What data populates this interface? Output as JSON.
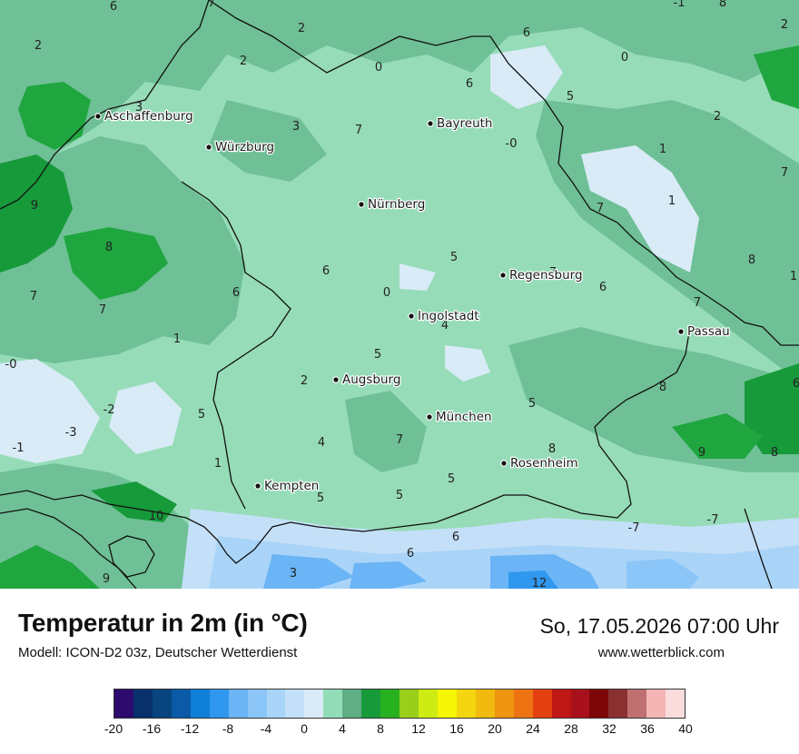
{
  "map": {
    "cities": [
      {
        "name": "Aschaffenburg"
      },
      {
        "name": "Würzburg"
      },
      {
        "name": "Bayreuth"
      },
      {
        "name": "Nürnberg"
      },
      {
        "name": "Regensburg"
      },
      {
        "name": "Ingolstadt"
      },
      {
        "name": "Passau"
      },
      {
        "name": "Augsburg"
      },
      {
        "name": "München"
      },
      {
        "name": "Rosenheim"
      },
      {
        "name": "Kempten"
      }
    ],
    "values": [
      "6",
      "7",
      "2",
      "2",
      "6",
      "-1",
      "8",
      "2",
      "0",
      "6",
      "0",
      "2",
      "3",
      "3",
      "7",
      "5",
      "-0",
      "2",
      "1",
      "7",
      "8",
      "7",
      "6",
      "9",
      "5",
      "7",
      "1",
      "8",
      "7",
      "1",
      "7",
      "6",
      "5",
      "6",
      "0",
      "4",
      "1",
      "-0",
      "5",
      "2",
      "-2",
      "5",
      "-3",
      "4",
      "7",
      "-1",
      "1",
      "5",
      "8",
      "5",
      "5",
      "6",
      "8",
      "9",
      "8",
      "-7",
      "-7",
      "10",
      "6",
      "6",
      "3",
      "12",
      "9",
      "7"
    ]
  },
  "footer": {
    "title": "Temperatur in 2m (in °C)",
    "subtitle": "Modell: ICON-D2 03z, Deutscher Wetterdienst",
    "datetime": "So, 17.05.2026 07:00 Uhr",
    "website": "www.wetterblick.com"
  },
  "legend": {
    "colors": [
      "#2d0a6e",
      "#08306b",
      "#08457e",
      "#0a5aa8",
      "#0f7fd8",
      "#2f97ee",
      "#6bb4f5",
      "#8cc5f7",
      "#a9d4f8",
      "#c4e0f8",
      "#daeaf8",
      "#93dcb8",
      "#5fae86",
      "#169a3a",
      "#27b01f",
      "#99cf18",
      "#ccec12",
      "#f5f505",
      "#f3d60f",
      "#f0ba0f",
      "#ed9410",
      "#ee7312",
      "#e2410f",
      "#bf1616",
      "#a8101c",
      "#7d0707",
      "#8b3030",
      "#c07070",
      "#f4b5b5",
      "#fbdcdc"
    ],
    "ticks": [
      "-20",
      "-16",
      "-12",
      "-8",
      "-4",
      "0",
      "4",
      "8",
      "12",
      "16",
      "20",
      "24",
      "28",
      "32",
      "36",
      "40"
    ]
  }
}
